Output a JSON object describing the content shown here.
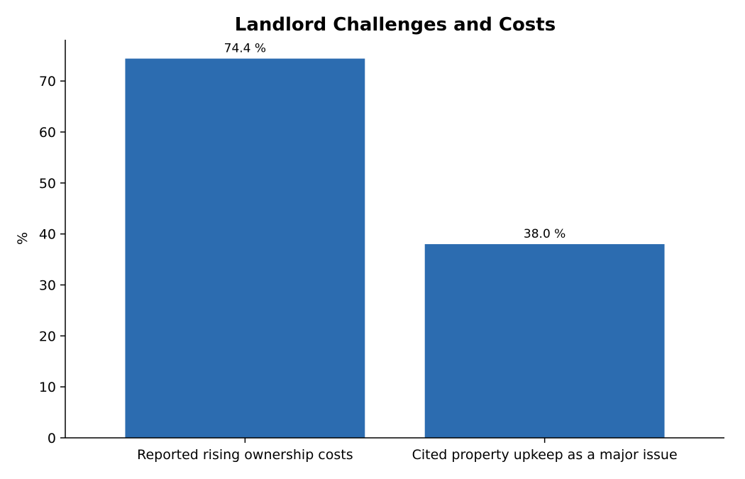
{
  "chart_data": {
    "type": "bar",
    "title": "Landlord Challenges and Costs",
    "xlabel": "",
    "ylabel": "%",
    "categories": [
      "Reported rising ownership costs",
      "Cited property upkeep as a major issue"
    ],
    "values": [
      74.4,
      38.0
    ],
    "data_labels": [
      "74.4 %",
      "38.0 %"
    ],
    "ylim": [
      0,
      78.1
    ],
    "yticks": [
      0,
      10,
      20,
      30,
      40,
      50,
      60,
      70
    ],
    "grid": false,
    "legend": "none",
    "bar_color": "#2c6cb0"
  }
}
